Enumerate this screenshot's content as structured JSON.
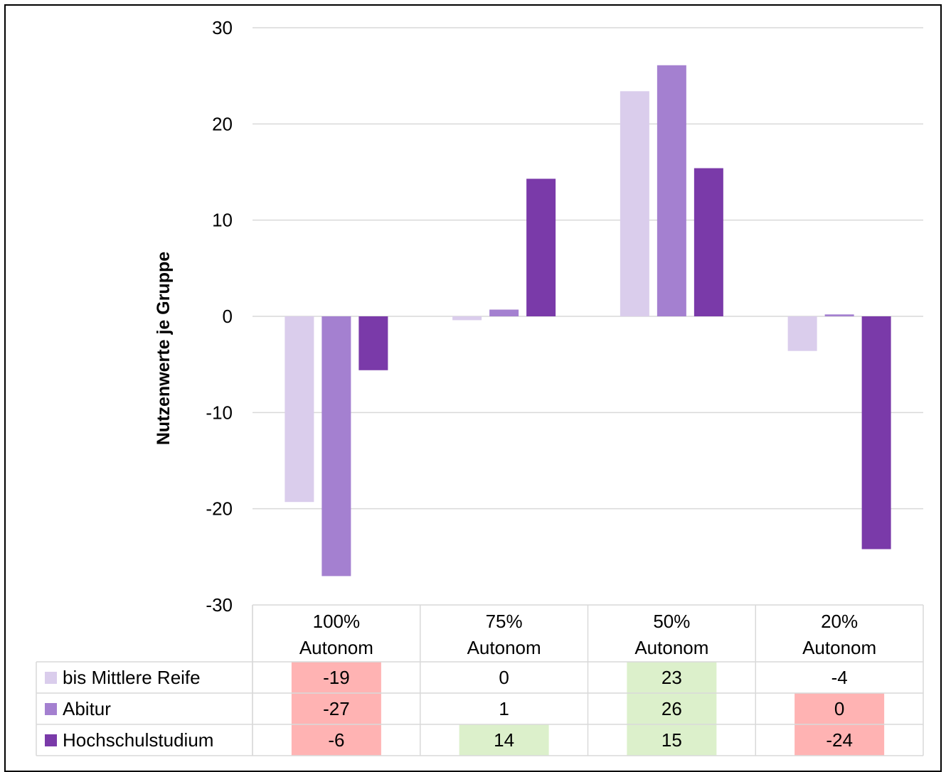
{
  "chart_data": {
    "type": "bar",
    "categories": [
      "100% Autonom",
      "75% Autonom",
      "50% Autonom",
      "20% Autonom"
    ],
    "category_lines": [
      [
        "100%",
        "Autonom"
      ],
      [
        "75%",
        "Autonom"
      ],
      [
        "50%",
        "Autonom"
      ],
      [
        "20%",
        "Autonom"
      ]
    ],
    "series": [
      {
        "name": "bis Mittlere Reife",
        "values": [
          -19.3,
          -0.4,
          23.4,
          -3.6
        ],
        "color": "#dacdec",
        "table": [
          "-19",
          "0",
          "23",
          "-4"
        ]
      },
      {
        "name": "Abitur",
        "values": [
          -27.0,
          0.7,
          26.1,
          0.2
        ],
        "color": "#a480d0",
        "table": [
          "-27",
          "1",
          "26",
          "0"
        ]
      },
      {
        "name": "Hochschulstudium",
        "values": [
          -5.6,
          14.3,
          15.4,
          -24.2
        ],
        "color": "#7a3aa9",
        "table": [
          "-6",
          "14",
          "15",
          "-24"
        ]
      }
    ],
    "cell_highlights": [
      [
        "red",
        "none",
        "green",
        "none"
      ],
      [
        "red",
        "none",
        "green",
        "red"
      ],
      [
        "red",
        "green",
        "green",
        "red"
      ]
    ],
    "highlight_colors": {
      "red": "#ffb3b3",
      "green": "#dcf0cb"
    },
    "title": "",
    "xlabel": "",
    "ylabel": "Nutzenwerte je Gruppe",
    "ylim": [
      -30,
      30
    ],
    "yticks": [
      30,
      20,
      10,
      0,
      -10,
      -20,
      -30
    ],
    "grid": true,
    "legend": "data-table-left"
  }
}
